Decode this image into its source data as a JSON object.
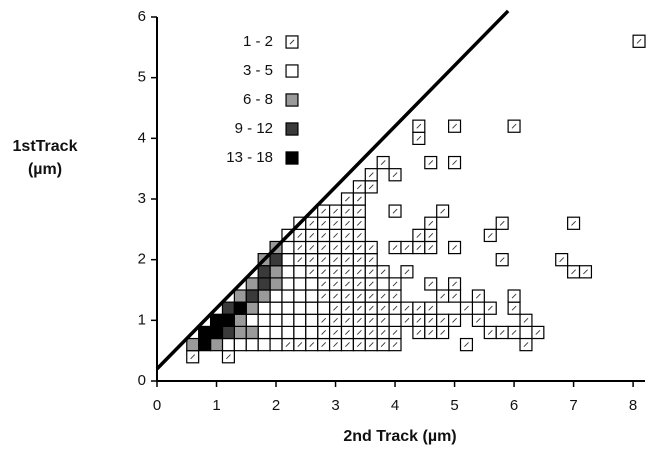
{
  "chart_data": {
    "type": "scatter",
    "x_label": "2nd Track  (µm)",
    "y_label": [
      "1stTrack",
      "(µm)"
    ],
    "xlim": [
      0,
      8.2
    ],
    "xticks": [
      0,
      1,
      2,
      3,
      4,
      5,
      6,
      7,
      8
    ],
    "ylim": [
      0,
      6
    ],
    "yticks": [
      0,
      1,
      2,
      3,
      4,
      5,
      6
    ],
    "cell_size": 0.2,
    "reference_line": {
      "x": [
        0,
        5.9
      ],
      "y": [
        0.2,
        6.1
      ],
      "color": "#000000"
    },
    "legend": "upper left",
    "series": [
      {
        "name": "1 - 2",
        "color": "#ffffff",
        "hatch": true,
        "x": [
          0.6,
          1.2,
          2.2,
          2.4,
          2.6,
          2.8,
          3.0,
          3.2,
          3.4,
          3.6,
          3.8,
          4.0,
          5.2,
          6.2,
          2.8,
          3.0,
          3.2,
          3.4,
          3.6,
          3.8,
          4.0,
          4.4,
          4.6,
          4.8,
          5.6,
          5.8,
          6.0,
          6.4,
          2.8,
          3.0,
          3.2,
          3.4,
          3.6,
          3.8,
          4.2,
          4.4,
          4.6,
          4.8,
          5.0,
          5.4,
          6.2,
          3.0,
          3.2,
          3.4,
          3.6,
          3.8,
          4.0,
          4.2,
          4.4,
          4.6,
          5.2,
          5.6,
          6.0,
          2.8,
          3.0,
          3.2,
          3.4,
          3.6,
          3.8,
          4.0,
          4.8,
          5.0,
          5.4,
          6.0,
          2.8,
          3.0,
          3.2,
          3.4,
          3.6,
          4.0,
          4.6,
          5.0,
          2.6,
          2.8,
          3.0,
          3.2,
          3.4,
          3.6,
          3.8,
          4.2,
          7.0,
          7.2,
          2.4,
          2.6,
          2.8,
          3.0,
          3.2,
          3.4,
          3.6,
          5.8,
          6.8,
          2.4,
          2.6,
          2.8,
          3.0,
          3.2,
          3.4,
          3.6,
          4.0,
          4.2,
          4.4,
          4.6,
          5.0,
          2.4,
          2.6,
          2.8,
          3.0,
          3.2,
          3.4,
          4.4,
          4.6,
          5.6,
          2.4,
          2.6,
          2.8,
          3.0,
          3.2,
          3.4,
          4.6,
          5.8,
          7.0,
          2.8,
          3.0,
          3.2,
          3.4,
          4.0,
          4.8,
          3.2,
          3.4,
          3.4,
          3.6,
          3.6,
          4.0,
          3.8,
          4.6,
          5.0,
          4.4,
          4.4,
          5.0,
          6.0,
          8.1
        ],
        "values": [
          0.4,
          0.4,
          0.6,
          0.6,
          0.6,
          0.6,
          0.6,
          0.6,
          0.6,
          0.6,
          0.6,
          0.6,
          0.6,
          0.6,
          0.8,
          0.8,
          0.8,
          0.8,
          0.8,
          0.8,
          0.8,
          0.8,
          0.8,
          0.8,
          0.8,
          0.8,
          0.8,
          0.8,
          1.0,
          1.0,
          1.0,
          1.0,
          1.0,
          1.0,
          1.0,
          1.0,
          1.0,
          1.0,
          1.0,
          1.0,
          1.0,
          1.2,
          1.2,
          1.2,
          1.2,
          1.2,
          1.2,
          1.2,
          1.2,
          1.2,
          1.2,
          1.2,
          1.2,
          1.4,
          1.4,
          1.4,
          1.4,
          1.4,
          1.4,
          1.4,
          1.4,
          1.4,
          1.4,
          1.4,
          1.6,
          1.6,
          1.6,
          1.6,
          1.6,
          1.6,
          1.6,
          1.6,
          1.8,
          1.8,
          1.8,
          1.8,
          1.8,
          1.8,
          1.8,
          1.8,
          1.8,
          1.8,
          2.0,
          2.0,
          2.0,
          2.0,
          2.0,
          2.0,
          2.0,
          2.0,
          2.0,
          2.2,
          2.2,
          2.2,
          2.2,
          2.2,
          2.2,
          2.2,
          2.2,
          2.2,
          2.2,
          2.2,
          2.2,
          2.4,
          2.4,
          2.4,
          2.4,
          2.4,
          2.4,
          2.4,
          2.4,
          2.4,
          2.6,
          2.6,
          2.6,
          2.6,
          2.6,
          2.6,
          2.6,
          2.6,
          2.6,
          2.8,
          2.8,
          2.8,
          2.8,
          2.8,
          2.8,
          3.0,
          3.0,
          3.2,
          3.2,
          3.4,
          3.4,
          3.6,
          3.6,
          3.6,
          4.0,
          4.2,
          4.2,
          4.2,
          5.6
        ]
      },
      {
        "name": "3 - 5",
        "color": "#ffffff",
        "x": [
          1.2,
          1.4,
          1.6,
          1.8,
          2.0,
          1.8,
          2.0,
          2.2,
          2.4,
          2.6,
          1.6,
          1.8,
          2.0,
          2.2,
          2.4,
          2.6,
          1.8,
          2.0,
          2.2,
          2.4,
          2.6,
          2.8,
          2.0,
          2.2,
          2.4,
          2.6,
          2.2,
          2.4,
          2.6,
          2.2,
          2.4,
          2.2,
          2.2,
          2.2
        ],
        "values": [
          0.6,
          0.6,
          0.6,
          0.6,
          0.6,
          0.8,
          0.8,
          0.8,
          0.8,
          0.8,
          1.0,
          1.0,
          1.0,
          1.0,
          1.0,
          1.0,
          1.2,
          1.2,
          1.2,
          1.2,
          1.2,
          1.2,
          1.4,
          1.4,
          1.4,
          1.4,
          1.6,
          1.6,
          1.6,
          1.8,
          1.8,
          2.0,
          2.2,
          2.4
        ]
      },
      {
        "name": "6 - 8",
        "color": "#9a9a9a",
        "x": [
          0.6,
          1.0,
          1.4,
          1.6,
          1.4,
          1.6,
          1.4,
          1.8,
          1.6,
          2.0,
          2.0,
          1.8,
          2.0
        ],
        "values": [
          0.6,
          0.6,
          0.8,
          0.8,
          1.0,
          1.2,
          1.4,
          1.4,
          1.6,
          1.6,
          1.8,
          2.0,
          2.2
        ]
      },
      {
        "name": "9 - 12",
        "color": "#3a3a3a",
        "x": [
          1.2,
          1.2,
          1.6,
          1.8,
          1.8,
          2.0
        ],
        "values": [
          0.8,
          1.2,
          1.4,
          1.6,
          1.8,
          2.0
        ]
      },
      {
        "name": "13 - 18",
        "color": "#000000",
        "x": [
          0.8,
          0.8,
          1.0,
          1.0,
          1.2,
          1.4
        ],
        "values": [
          0.6,
          0.8,
          0.8,
          1.0,
          1.0,
          1.2
        ]
      }
    ]
  }
}
